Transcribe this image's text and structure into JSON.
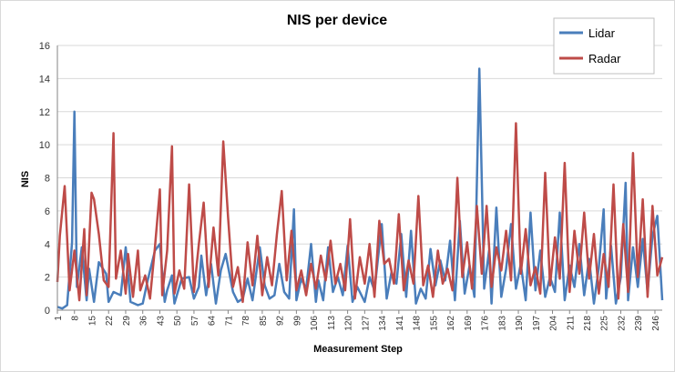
{
  "chart_data": {
    "type": "line",
    "title": "NIS per device",
    "xlabel": "Measurement Step",
    "ylabel": "NIS",
    "ylim": [
      0,
      16
    ],
    "yticks": [
      0,
      2,
      4,
      6,
      8,
      10,
      12,
      14,
      16
    ],
    "xlim": [
      1,
      249
    ],
    "xticks": [
      1,
      8,
      15,
      22,
      29,
      36,
      43,
      50,
      57,
      64,
      71,
      78,
      85,
      92,
      99,
      106,
      113,
      120,
      127,
      134,
      141,
      148,
      155,
      162,
      169,
      176,
      183,
      190,
      197,
      204,
      211,
      218,
      225,
      232,
      239,
      246
    ],
    "grid": "horizontal",
    "legend": "top-right",
    "series": [
      {
        "name": "Lidar",
        "color": "#4a7ebb",
        "x": [
          1,
          3,
          5,
          7,
          8,
          9,
          11,
          13,
          14,
          16,
          18,
          21,
          22,
          24,
          27,
          29,
          31,
          34,
          36,
          38,
          41,
          43,
          45,
          46,
          48,
          49,
          52,
          55,
          57,
          59,
          60,
          62,
          64,
          66,
          68,
          70,
          73,
          75,
          77,
          79,
          81,
          84,
          86,
          88,
          90,
          92,
          94,
          96,
          98,
          99,
          101,
          103,
          105,
          107,
          108,
          110,
          112,
          114,
          116,
          118,
          120,
          122,
          124,
          127,
          129,
          131,
          134,
          136,
          138,
          140,
          142,
          144,
          146,
          148,
          150,
          152,
          154,
          156,
          158,
          160,
          162,
          164,
          166,
          168,
          170,
          172,
          174,
          176,
          178,
          179,
          181,
          183,
          185,
          187,
          189,
          191,
          193,
          195,
          197,
          199,
          201,
          203,
          205,
          207,
          209,
          211,
          213,
          215,
          217,
          219,
          221,
          223,
          225,
          226,
          228,
          230,
          232,
          234,
          235,
          237,
          239,
          241,
          243,
          245,
          247,
          249
        ],
        "y": [
          0.2,
          0.1,
          0.3,
          4.1,
          12.0,
          1.4,
          3.8,
          0.6,
          2.5,
          0.5,
          2.9,
          2.2,
          0.5,
          1.1,
          0.9,
          3.8,
          0.5,
          0.3,
          0.4,
          1.8,
          3.6,
          4.0,
          0.5,
          1.2,
          2.1,
          0.4,
          1.9,
          2.0,
          0.7,
          1.4,
          3.3,
          0.9,
          2.8,
          0.4,
          2.4,
          3.4,
          1.1,
          0.5,
          0.7,
          1.9,
          0.6,
          3.8,
          1.5,
          0.7,
          0.9,
          2.8,
          1.1,
          0.7,
          6.1,
          0.6,
          1.9,
          1.3,
          4.0,
          0.5,
          1.8,
          0.6,
          3.8,
          1.1,
          2.0,
          0.9,
          3.9,
          0.5,
          1.4,
          0.5,
          2.0,
          1.2,
          5.2,
          0.7,
          2.3,
          1.6,
          4.6,
          0.8,
          4.8,
          0.4,
          1.3,
          0.7,
          3.7,
          1.5,
          3.0,
          1.8,
          4.2,
          0.6,
          5.4,
          1.0,
          2.7,
          0.8,
          14.6,
          1.3,
          3.6,
          0.4,
          6.2,
          0.8,
          2.5,
          5.2,
          1.3,
          2.8,
          0.6,
          5.9,
          1.2,
          3.6,
          0.8,
          2.0,
          1.1,
          5.9,
          0.6,
          2.7,
          1.4,
          4.0,
          0.9,
          3.1,
          0.4,
          2.6,
          6.1,
          0.7,
          3.9,
          0.4,
          2.0,
          7.7,
          0.6,
          3.8,
          1.4,
          4.3,
          1.1,
          4.5,
          5.7,
          0.6
        ]
      },
      {
        "name": "Radar",
        "color": "#be4b48",
        "x": [
          1,
          2,
          4,
          6,
          8,
          10,
          12,
          13,
          15,
          16,
          18,
          20,
          22,
          24,
          25,
          27,
          29,
          30,
          32,
          34,
          35,
          37,
          39,
          41,
          43,
          44,
          46,
          48,
          49,
          51,
          53,
          55,
          57,
          59,
          61,
          63,
          65,
          67,
          69,
          71,
          73,
          75,
          77,
          79,
          81,
          83,
          85,
          87,
          89,
          91,
          93,
          95,
          97,
          99,
          101,
          103,
          105,
          107,
          109,
          111,
          113,
          115,
          117,
          119,
          121,
          123,
          125,
          127,
          129,
          131,
          133,
          135,
          137,
          139,
          141,
          143,
          145,
          147,
          149,
          151,
          153,
          155,
          157,
          159,
          161,
          163,
          165,
          167,
          169,
          171,
          173,
          175,
          177,
          179,
          181,
          183,
          185,
          187,
          189,
          191,
          193,
          195,
          197,
          199,
          201,
          203,
          205,
          207,
          209,
          211,
          213,
          215,
          217,
          219,
          221,
          223,
          225,
          227,
          229,
          231,
          233,
          235,
          237,
          239,
          241,
          243,
          245,
          247,
          249
        ],
        "y": [
          1.7,
          4.5,
          7.5,
          1.2,
          3.6,
          0.6,
          4.9,
          0.9,
          7.1,
          6.7,
          4.6,
          1.8,
          1.4,
          10.7,
          1.9,
          3.6,
          1.0,
          3.4,
          0.8,
          3.6,
          1.2,
          2.1,
          0.7,
          3.8,
          7.3,
          0.9,
          3.6,
          9.9,
          1.0,
          2.4,
          1.3,
          7.6,
          1.1,
          4.0,
          6.5,
          1.4,
          5.0,
          2.1,
          10.2,
          5.6,
          1.4,
          2.6,
          0.5,
          4.1,
          1.5,
          4.5,
          0.9,
          3.2,
          1.5,
          4.6,
          7.2,
          1.8,
          4.8,
          1.2,
          2.4,
          0.9,
          2.8,
          1.3,
          3.3,
          1.8,
          4.2,
          1.6,
          2.8,
          1.2,
          5.5,
          0.7,
          3.2,
          1.6,
          4.0,
          0.8,
          5.4,
          2.8,
          3.1,
          1.6,
          5.8,
          1.2,
          3.0,
          1.6,
          6.9,
          1.5,
          2.7,
          0.8,
          3.6,
          1.6,
          2.5,
          1.2,
          8.0,
          2.0,
          4.1,
          1.3,
          6.3,
          2.2,
          6.3,
          1.4,
          3.8,
          2.4,
          4.8,
          1.8,
          11.3,
          2.2,
          4.9,
          1.5,
          2.6,
          1.0,
          8.3,
          1.5,
          4.4,
          1.9,
          8.9,
          1.1,
          4.8,
          2.2,
          5.9,
          1.9,
          4.6,
          1.0,
          3.4,
          1.4,
          7.6,
          0.7,
          5.2,
          1.1,
          9.5,
          2.0,
          6.7,
          0.8,
          6.3,
          2.1,
          3.2
        ]
      }
    ]
  }
}
